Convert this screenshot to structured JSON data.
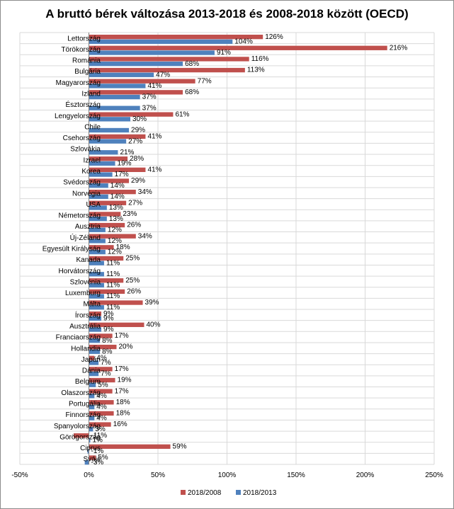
{
  "chart_data": {
    "type": "bar",
    "orientation": "horizontal",
    "title": "A bruttó bérek változása 2013-2018 és 2008-2018 között (OECD)",
    "xlabel": "",
    "ylabel": "",
    "xlim": [
      -50,
      250
    ],
    "xticks": [
      "-50%",
      "0%",
      "50%",
      "100%",
      "150%",
      "200%",
      "250%"
    ],
    "grid": true,
    "legend_position": "bottom",
    "categories": [
      "Lettország",
      "Törökország",
      "Románia",
      "Bulgária",
      "Magyarország",
      "Izland",
      "Észtország",
      "Lengyelország",
      "Chile",
      "Csehország",
      "Szlovákia",
      "Izrael",
      "Korea",
      "Svédország",
      "Norvégia",
      "USA",
      "Németország",
      "Ausztria",
      "Új-Zéland",
      "Egyesült Királyság",
      "Kanada",
      "Horvátország",
      "Szlovénia",
      "Luxemburg",
      "Málta",
      "Írország",
      "Ausztrália",
      "Franciaország",
      "Hollandia",
      "Japán",
      "Dánia",
      "Belgium",
      "Olaszország",
      "Portugália",
      "Finnország",
      "Spanyolország",
      "Görögország",
      "Ciprus",
      "Svájc"
    ],
    "series": [
      {
        "name": "2018/2008",
        "color": "#c0504d",
        "values": [
          126,
          216,
          116,
          113,
          77,
          68,
          null,
          61,
          null,
          41,
          null,
          28,
          41,
          29,
          34,
          27,
          23,
          26,
          34,
          18,
          25,
          null,
          25,
          26,
          39,
          9,
          40,
          17,
          20,
          4,
          17,
          19,
          17,
          18,
          18,
          16,
          -11,
          59,
          5
        ],
        "labels": [
          "126%",
          "216%",
          "116%",
          "113%",
          "77%",
          "68%",
          "",
          "61%",
          "",
          "41%",
          "",
          "28%",
          "41%",
          "29%",
          "34%",
          "27%",
          "23%",
          "26%",
          "34%",
          "18%",
          "25%",
          "",
          "25%",
          "26%",
          "39%",
          "9%",
          "40%",
          "17%",
          "20%",
          "4%",
          "17%",
          "19%",
          "17%",
          "18%",
          "18%",
          "16%",
          "-11%",
          "59%",
          "5%"
        ]
      },
      {
        "name": "2018/2013",
        "color": "#4f81bd",
        "values": [
          104,
          91,
          68,
          47,
          41,
          37,
          37,
          30,
          29,
          27,
          21,
          19,
          17,
          14,
          14,
          13,
          13,
          12,
          12,
          12,
          11,
          11,
          11,
          11,
          11,
          9,
          9,
          8,
          8,
          7,
          7,
          5,
          4,
          4,
          4,
          3,
          1,
          -1,
          -3
        ],
        "labels": [
          "104%",
          "91%",
          "68%",
          "47%",
          "41%",
          "37%",
          "37%",
          "30%",
          "29%",
          "27%",
          "21%",
          "19%",
          "17%",
          "14%",
          "14%",
          "13%",
          "13%",
          "12%",
          "12%",
          "12%",
          "11%",
          "11%",
          "11%",
          "11%",
          "11%",
          "9%",
          "9%",
          "8%",
          "8%",
          "7%",
          "7%",
          "5%",
          "4%",
          "4%",
          "4%",
          "3%",
          "1%",
          "-1%",
          "-3%"
        ]
      }
    ]
  }
}
